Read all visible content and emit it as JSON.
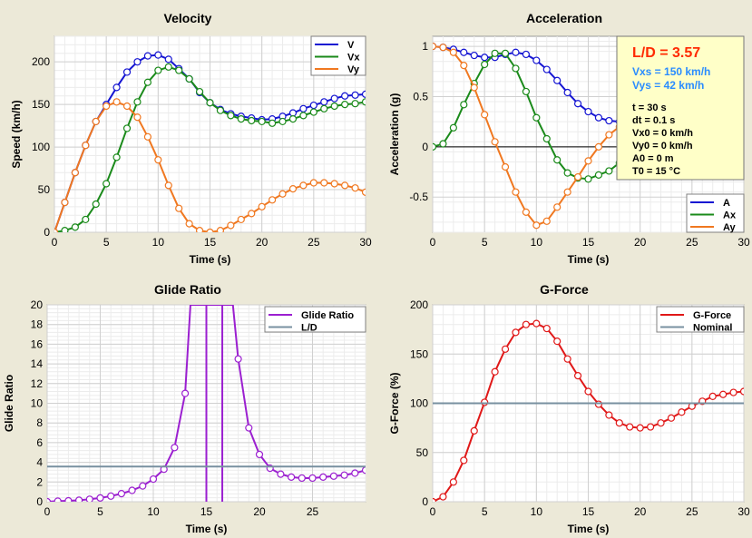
{
  "colors": {
    "background": "#ece9d8",
    "plot_bg": "#ffffff",
    "grid_major": "#d0d0d0",
    "grid_minor": "#ececec",
    "blue": "#1414d2",
    "green": "#1a8a1a",
    "orange": "#f07820",
    "purple": "#9b1fd0",
    "red": "#e01818",
    "nominal": "#7890a0",
    "info_bg": "#ffffc8",
    "info_ld": "#ff2a00",
    "info_v": "#2a8cff"
  },
  "info_box": {
    "ld": "L/D = 3.57",
    "vxs": "Vxs = 150 km/h",
    "vys": "Vys = 42 km/h",
    "lines": [
      "t = 30 s",
      "dt = 0.1 s",
      "Vx0 = 0 km/h",
      "Vy0 = 0 km/h",
      "A0 = 0 m",
      "T0 = 15 °C"
    ]
  },
  "chart_data": [
    {
      "type": "line",
      "title": "Velocity",
      "xlabel": "Time (s)",
      "ylabel": "Speed (km/h)",
      "xlim": [
        0,
        30
      ],
      "ylim": [
        0,
        230
      ],
      "xticks": [
        0,
        5,
        10,
        15,
        20,
        25,
        30
      ],
      "yticks": [
        0,
        50,
        100,
        150,
        200
      ],
      "legend": "top-right",
      "series": [
        {
          "name": "V",
          "color": "blue",
          "x": [
            0,
            1,
            2,
            3,
            4,
            5,
            6,
            7,
            8,
            9,
            10,
            11,
            12,
            13,
            14,
            15,
            16,
            17,
            18,
            19,
            20,
            21,
            22,
            23,
            24,
            25,
            26,
            27,
            28,
            29,
            30
          ],
          "values": [
            0,
            35,
            70,
            102,
            130,
            150,
            170,
            188,
            200,
            207,
            208,
            203,
            192,
            180,
            164,
            152,
            144,
            139,
            136,
            134,
            132,
            133,
            136,
            140,
            145,
            149,
            153,
            157,
            160,
            161,
            162
          ]
        },
        {
          "name": "Vx",
          "color": "green",
          "x": [
            0,
            1,
            2,
            3,
            4,
            5,
            6,
            7,
            8,
            9,
            10,
            11,
            12,
            13,
            14,
            15,
            16,
            17,
            18,
            19,
            20,
            21,
            22,
            23,
            24,
            25,
            26,
            27,
            28,
            29,
            30
          ],
          "values": [
            0,
            2,
            6,
            15,
            33,
            57,
            88,
            122,
            153,
            176,
            190,
            194,
            190,
            180,
            165,
            152,
            143,
            137,
            133,
            131,
            130,
            128,
            130,
            133,
            137,
            141,
            145,
            148,
            150,
            151,
            153
          ]
        },
        {
          "name": "Vy",
          "color": "orange",
          "x": [
            0,
            1,
            2,
            3,
            4,
            5,
            6,
            7,
            8,
            9,
            10,
            11,
            12,
            13,
            14,
            15,
            16,
            17,
            18,
            19,
            20,
            21,
            22,
            23,
            24,
            25,
            26,
            27,
            28,
            29,
            30
          ],
          "values": [
            0,
            35,
            70,
            102,
            130,
            148,
            153,
            148,
            135,
            112,
            85,
            55,
            28,
            10,
            2,
            0,
            2,
            8,
            15,
            22,
            30,
            38,
            45,
            51,
            55,
            58,
            58,
            57,
            55,
            52,
            47
          ]
        }
      ]
    },
    {
      "type": "line",
      "title": "Acceleration",
      "xlabel": "Time (s)",
      "ylabel": "Acceleration (g)",
      "xlim": [
        0,
        30
      ],
      "ylim": [
        -0.85,
        1.1
      ],
      "xticks": [
        0,
        5,
        10,
        15,
        20,
        25,
        30
      ],
      "yticks": [
        -0.5,
        0.0,
        0.5,
        1.0
      ],
      "ytick_labels": [
        "-0.5",
        "0.0",
        "0.5",
        "1.0"
      ],
      "legend": "bottom-right",
      "series": [
        {
          "name": "A",
          "color": "blue",
          "x": [
            0,
            1,
            2,
            3,
            4,
            5,
            6,
            7,
            8,
            9,
            10,
            11,
            12,
            13,
            14,
            15,
            16,
            17,
            18
          ],
          "values": [
            1.0,
            0.99,
            0.97,
            0.94,
            0.91,
            0.89,
            0.89,
            0.92,
            0.94,
            0.92,
            0.86,
            0.77,
            0.66,
            0.54,
            0.43,
            0.35,
            0.29,
            0.26,
            0.25
          ]
        },
        {
          "name": "Ax",
          "color": "green",
          "x": [
            0,
            1,
            2,
            3,
            4,
            5,
            6,
            7,
            8,
            9,
            10,
            11,
            12,
            13,
            14,
            15,
            16,
            17,
            18
          ],
          "values": [
            0.0,
            0.03,
            0.19,
            0.42,
            0.63,
            0.82,
            0.93,
            0.93,
            0.78,
            0.55,
            0.29,
            0.08,
            -0.13,
            -0.26,
            -0.31,
            -0.32,
            -0.28,
            -0.24,
            -0.16
          ]
        },
        {
          "name": "Ay",
          "color": "orange",
          "x": [
            0,
            1,
            2,
            3,
            4,
            5,
            6,
            7,
            8,
            9,
            10,
            11,
            12,
            13,
            14,
            15,
            16,
            17,
            18
          ],
          "values": [
            1.0,
            0.99,
            0.94,
            0.81,
            0.59,
            0.32,
            0.05,
            -0.2,
            -0.45,
            -0.65,
            -0.78,
            -0.74,
            -0.6,
            -0.45,
            -0.3,
            -0.14,
            0.0,
            0.12,
            0.2
          ]
        }
      ]
    },
    {
      "type": "line",
      "title": "Glide Ratio",
      "xlabel": "Time (s)",
      "ylabel": "Glide Ratio",
      "xlim": [
        0,
        30
      ],
      "ylim": [
        0,
        20
      ],
      "xticks": [
        0,
        5,
        10,
        15,
        20,
        25
      ],
      "yticks": [
        0,
        2,
        4,
        6,
        8,
        10,
        12,
        14,
        16,
        18,
        20
      ],
      "legend": "top-right",
      "vertical_lines": [
        15.0,
        16.5
      ],
      "series": [
        {
          "name": "Glide Ratio",
          "color": "purple",
          "x": [
            0,
            1,
            2,
            3,
            4,
            5,
            6,
            7,
            8,
            9,
            10,
            11,
            12,
            13,
            13.5,
            17.5,
            18,
            19,
            20,
            21,
            22,
            23,
            24,
            25,
            26,
            27,
            28,
            29,
            30
          ],
          "values": [
            0.0,
            0.06,
            0.09,
            0.15,
            0.25,
            0.38,
            0.57,
            0.82,
            1.15,
            1.6,
            2.3,
            3.3,
            5.5,
            11.0,
            20,
            20,
            14.5,
            7.5,
            4.8,
            3.4,
            2.8,
            2.5,
            2.4,
            2.4,
            2.5,
            2.6,
            2.7,
            2.9,
            3.2
          ]
        },
        {
          "name": "L/D",
          "color": "nominal",
          "x": [
            0,
            30
          ],
          "values": [
            3.57,
            3.57
          ]
        }
      ]
    },
    {
      "type": "line",
      "title": "G-Force",
      "xlabel": "Time (s)",
      "ylabel": "G-Force (%)",
      "xlim": [
        0,
        30
      ],
      "ylim": [
        0,
        200
      ],
      "xticks": [
        0,
        5,
        10,
        15,
        20,
        25,
        30
      ],
      "yticks": [
        0,
        50,
        100,
        150,
        200
      ],
      "legend": "top-right",
      "series": [
        {
          "name": "G-Force",
          "color": "red",
          "x": [
            0,
            1,
            2,
            3,
            4,
            5,
            6,
            7,
            8,
            9,
            10,
            11,
            12,
            13,
            14,
            15,
            16,
            17,
            18,
            19,
            20,
            21,
            22,
            23,
            24,
            25,
            26,
            27,
            28,
            29,
            30
          ],
          "values": [
            0,
            5,
            20,
            42,
            72,
            101,
            132,
            155,
            172,
            180,
            181,
            176,
            163,
            145,
            128,
            112,
            99,
            88,
            80,
            76,
            75,
            76,
            80,
            85,
            91,
            97,
            102,
            107,
            109,
            111,
            112
          ]
        },
        {
          "name": "Nominal",
          "color": "nominal",
          "x": [
            0,
            30
          ],
          "values": [
            100,
            100
          ]
        }
      ]
    }
  ]
}
